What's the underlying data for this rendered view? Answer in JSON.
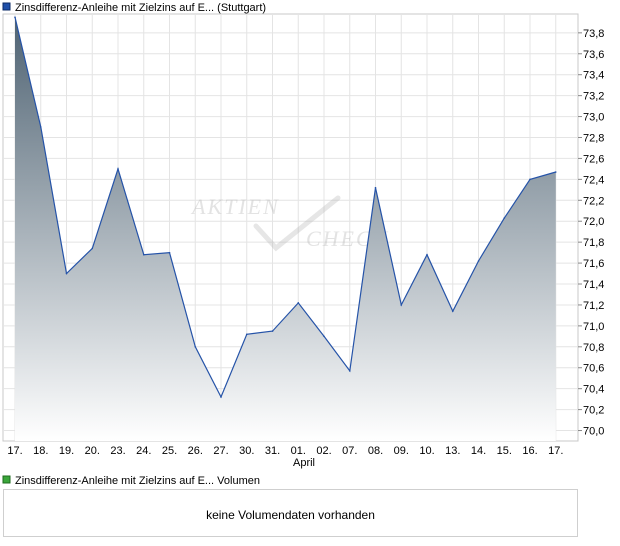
{
  "price_chart": {
    "legend_label": "Zinsdifferenz-Anleihe mit Zielzins auf E... (Stuttgart)",
    "legend_color": "#1f4fa8",
    "watermark": [
      "AKTIEN",
      "CHECK"
    ]
  },
  "volume_chart": {
    "legend_label": "Zinsdifferenz-Anleihe mit Zielzins auf E... Volumen",
    "legend_color": "#3aa63a",
    "no_data_text": "keine Volumendaten vorhanden"
  },
  "chart_data": {
    "type": "area",
    "x": [
      "17.",
      "18.",
      "19.",
      "20.",
      "23.",
      "24.",
      "25.",
      "26.",
      "27.",
      "30.",
      "31.",
      "01.",
      "02.",
      "07.",
      "08.",
      "09.",
      "10.",
      "13.",
      "14.",
      "15.",
      "16.",
      "17."
    ],
    "month_label": "April",
    "series": [
      {
        "values": [
          73.95,
          72.9,
          71.5,
          71.74,
          72.5,
          71.68,
          71.7,
          70.8,
          70.32,
          70.92,
          70.95,
          71.22,
          70.9,
          70.57,
          72.32,
          71.2,
          71.68,
          71.14,
          71.62,
          72.03,
          72.4,
          72.47
        ]
      }
    ],
    "yticks": [
      "73,8",
      "73,6",
      "73,4",
      "73,2",
      "73,0",
      "72,8",
      "72,6",
      "72,4",
      "72,2",
      "72,0",
      "71,8",
      "71,6",
      "71,4",
      "71,2",
      "71,0",
      "70,8",
      "70,6",
      "70,4",
      "70,2",
      "70,0"
    ],
    "ylim": [
      69.9,
      73.98
    ],
    "line_color": "#2553a8",
    "fill_top_color": "#4f6373",
    "fill_bottom_color": "#ffffff",
    "grid": true,
    "axis_side": "right"
  }
}
